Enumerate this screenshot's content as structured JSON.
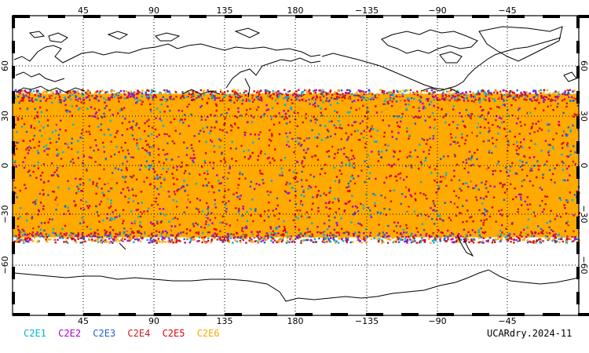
{
  "map": {
    "projection": "equirectangular",
    "top_lon_labels": [
      "45",
      "90",
      "135",
      "180",
      "−135",
      "−90",
      "−45"
    ],
    "bottom_lon_labels": [
      "45",
      "90",
      "135",
      "180",
      "−135",
      "−90",
      "−45"
    ],
    "left_lat_labels": [
      "60",
      "30",
      "0",
      "−30",
      "−60"
    ],
    "right_lat_labels": [
      "60",
      "30",
      "0",
      "−30",
      "−60"
    ],
    "coverage_band_lat": [
      -45,
      45
    ],
    "colors": {
      "C2E1": "#00b4d8",
      "C2E2": "#b000d0",
      "C2E3": "#2060d0",
      "C2E4": "#c02020",
      "C2E5": "#e00010",
      "C2E6": "#ffaa00",
      "coast": "#000000",
      "grid": "#000000"
    }
  },
  "legend": [
    {
      "label": "C2E1",
      "color": "#00b4d8"
    },
    {
      "label": "C2E2",
      "color": "#b000d0"
    },
    {
      "label": "C2E3",
      "color": "#2060d0"
    },
    {
      "label": "C2E4",
      "color": "#c02020"
    },
    {
      "label": "C2E5",
      "color": "#e00010"
    },
    {
      "label": "C2E6",
      "color": "#ffaa00"
    }
  ],
  "source_label": "UCARdry.2024-11"
}
